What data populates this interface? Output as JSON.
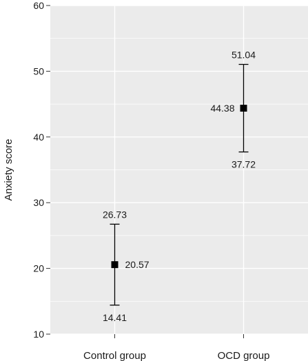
{
  "chart_data": {
    "type": "scatter",
    "title": "",
    "xlabel": "",
    "ylabel": "Anxiety score",
    "ylim": [
      10,
      60
    ],
    "y_ticks": [
      10,
      20,
      30,
      40,
      50,
      60
    ],
    "grid": true,
    "background": "#ebebeb",
    "gridline_color": "#ffffff",
    "mark_color": "#000000",
    "categories": [
      "Control group",
      "OCD group"
    ],
    "points": [
      {
        "category": "Control group",
        "mean": 20.57,
        "lower": 14.41,
        "upper": 26.73,
        "mean_label": "20.57",
        "lower_label": "14.41",
        "upper_label": "26.73"
      },
      {
        "category": "OCD group",
        "mean": 44.38,
        "lower": 37.72,
        "upper": 51.04,
        "mean_label": "44.38",
        "lower_label": "37.72",
        "upper_label": "51.04"
      }
    ]
  }
}
